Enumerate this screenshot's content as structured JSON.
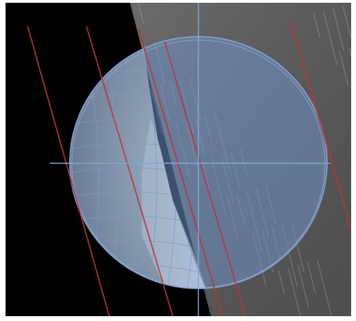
{
  "viewer": {
    "background_color": "#000000",
    "frame_color": "#ffffff",
    "surface_color": "#5e5e5e",
    "globe_overlay_color": "#6f93c8",
    "crosshair_color": "#7fa7d8",
    "orbit_line_color": "#c0323a",
    "lit_limb_color": "#f4ecd9",
    "gridline_color": "#7aa4d6"
  },
  "icons": {
    "crosshair": "crosshair-icon"
  }
}
